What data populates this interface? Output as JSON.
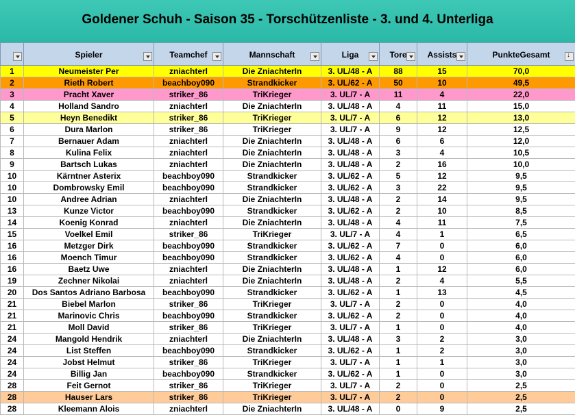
{
  "title": "Goldener Schuh - Saison 35 - Torschützenliste - 3. und 4. Unterliga",
  "columns": [
    {
      "label": "",
      "sorted": false
    },
    {
      "label": "Spieler",
      "sorted": false
    },
    {
      "label": "Teamchef",
      "sorted": false
    },
    {
      "label": "Mannschaft",
      "sorted": false
    },
    {
      "label": "Liga",
      "sorted": false
    },
    {
      "label": "Tore",
      "sorted": false
    },
    {
      "label": "Assists",
      "sorted": false
    },
    {
      "label": "PunkteGesamt",
      "sorted": true
    }
  ],
  "colors": {
    "gold": "#ffff00",
    "silver": "#ff9900",
    "bronze": "#ff99cc",
    "pale_yellow": "#ffff99",
    "peach": "#ffcc99",
    "white": "#ffffff"
  },
  "rows": [
    {
      "rank": "1",
      "player": "Neumeister Per",
      "chef": "zniachterl",
      "team": "Die ZniachterIn",
      "liga": "3. UL/48 - A",
      "tore": "88",
      "assists": "15",
      "punkte": "70,0",
      "color": "#ffff00"
    },
    {
      "rank": "2",
      "player": "Rieth Robert",
      "chef": "beachboy090",
      "team": "Strandkicker",
      "liga": "3. UL/62 - A",
      "tore": "50",
      "assists": "10",
      "punkte": "49,5",
      "color": "#ff9900"
    },
    {
      "rank": "3",
      "player": "Pracht Xaver",
      "chef": "striker_86",
      "team": "TriKrieger",
      "liga": "3. UL/7 - A",
      "tore": "11",
      "assists": "4",
      "punkte": "22,0",
      "color": "#ff99cc"
    },
    {
      "rank": "4",
      "player": "Holland Sandro",
      "chef": "zniachterl",
      "team": "Die ZniachterIn",
      "liga": "3. UL/48 - A",
      "tore": "4",
      "assists": "11",
      "punkte": "15,0",
      "color": "#ffffff"
    },
    {
      "rank": "5",
      "player": "Heyn Benedikt",
      "chef": "striker_86",
      "team": "TriKrieger",
      "liga": "3. UL/7 - A",
      "tore": "6",
      "assists": "12",
      "punkte": "13,0",
      "color": "#ffff99"
    },
    {
      "rank": "6",
      "player": "Dura Marlon",
      "chef": "striker_86",
      "team": "TriKrieger",
      "liga": "3. UL/7 - A",
      "tore": "9",
      "assists": "12",
      "punkte": "12,5",
      "color": "#ffffff"
    },
    {
      "rank": "7",
      "player": "Bernauer Adam",
      "chef": "zniachterl",
      "team": "Die ZniachterIn",
      "liga": "3. UL/48 - A",
      "tore": "6",
      "assists": "6",
      "punkte": "12,0",
      "color": "#ffffff"
    },
    {
      "rank": "8",
      "player": "Kulina Felix",
      "chef": "zniachterl",
      "team": "Die ZniachterIn",
      "liga": "3. UL/48 - A",
      "tore": "3",
      "assists": "4",
      "punkte": "10,5",
      "color": "#ffffff"
    },
    {
      "rank": "9",
      "player": "Bartsch Lukas",
      "chef": "zniachterl",
      "team": "Die ZniachterIn",
      "liga": "3. UL/48 - A",
      "tore": "2",
      "assists": "16",
      "punkte": "10,0",
      "color": "#ffffff"
    },
    {
      "rank": "10",
      "player": "Kärntner Asterix",
      "chef": "beachboy090",
      "team": "Strandkicker",
      "liga": "3. UL/62 - A",
      "tore": "5",
      "assists": "12",
      "punkte": "9,5",
      "color": "#ffffff"
    },
    {
      "rank": "10",
      "player": "Dombrowsky Emil",
      "chef": "beachboy090",
      "team": "Strandkicker",
      "liga": "3. UL/62 - A",
      "tore": "3",
      "assists": "22",
      "punkte": "9,5",
      "color": "#ffffff"
    },
    {
      "rank": "10",
      "player": "Andree Adrian",
      "chef": "zniachterl",
      "team": "Die ZniachterIn",
      "liga": "3. UL/48 - A",
      "tore": "2",
      "assists": "14",
      "punkte": "9,5",
      "color": "#ffffff"
    },
    {
      "rank": "13",
      "player": "Kunze Victor",
      "chef": "beachboy090",
      "team": "Strandkicker",
      "liga": "3. UL/62 - A",
      "tore": "2",
      "assists": "10",
      "punkte": "8,5",
      "color": "#ffffff"
    },
    {
      "rank": "14",
      "player": "Koenig Konrad",
      "chef": "zniachterl",
      "team": "Die ZniachterIn",
      "liga": "3. UL/48 - A",
      "tore": "4",
      "assists": "11",
      "punkte": "7,5",
      "color": "#ffffff"
    },
    {
      "rank": "15",
      "player": "Voelkel Emil",
      "chef": "striker_86",
      "team": "TriKrieger",
      "liga": "3. UL/7 - A",
      "tore": "4",
      "assists": "1",
      "punkte": "6,5",
      "color": "#ffffff"
    },
    {
      "rank": "16",
      "player": "Metzger Dirk",
      "chef": "beachboy090",
      "team": "Strandkicker",
      "liga": "3. UL/62 - A",
      "tore": "7",
      "assists": "0",
      "punkte": "6,0",
      "color": "#ffffff"
    },
    {
      "rank": "16",
      "player": "Moench Timur",
      "chef": "beachboy090",
      "team": "Strandkicker",
      "liga": "3. UL/62 - A",
      "tore": "4",
      "assists": "0",
      "punkte": "6,0",
      "color": "#ffffff"
    },
    {
      "rank": "16",
      "player": "Baetz Uwe",
      "chef": "zniachterl",
      "team": "Die ZniachterIn",
      "liga": "3. UL/48 - A",
      "tore": "1",
      "assists": "12",
      "punkte": "6,0",
      "color": "#ffffff"
    },
    {
      "rank": "19",
      "player": "Zechner Nikolai",
      "chef": "zniachterl",
      "team": "Die ZniachterIn",
      "liga": "3. UL/48 - A",
      "tore": "2",
      "assists": "4",
      "punkte": "5,5",
      "color": "#ffffff"
    },
    {
      "rank": "20",
      "player": "Dos Santos Adriano Barbosa",
      "chef": "beachboy090",
      "team": "Strandkicker",
      "liga": "3. UL/62 - A",
      "tore": "1",
      "assists": "13",
      "punkte": "4,5",
      "color": "#ffffff"
    },
    {
      "rank": "21",
      "player": "Biebel Marlon",
      "chef": "striker_86",
      "team": "TriKrieger",
      "liga": "3. UL/7 - A",
      "tore": "2",
      "assists": "0",
      "punkte": "4,0",
      "color": "#ffffff"
    },
    {
      "rank": "21",
      "player": "Marinovic Chris",
      "chef": "beachboy090",
      "team": "Strandkicker",
      "liga": "3. UL/62 - A",
      "tore": "2",
      "assists": "0",
      "punkte": "4,0",
      "color": "#ffffff"
    },
    {
      "rank": "21",
      "player": "Moll David",
      "chef": "striker_86",
      "team": "TriKrieger",
      "liga": "3. UL/7 - A",
      "tore": "1",
      "assists": "0",
      "punkte": "4,0",
      "color": "#ffffff"
    },
    {
      "rank": "24",
      "player": "Mangold Hendrik",
      "chef": "zniachterl",
      "team": "Die ZniachterIn",
      "liga": "3. UL/48 - A",
      "tore": "3",
      "assists": "2",
      "punkte": "3,0",
      "color": "#ffffff"
    },
    {
      "rank": "24",
      "player": "List Steffen",
      "chef": "beachboy090",
      "team": "Strandkicker",
      "liga": "3. UL/62 - A",
      "tore": "1",
      "assists": "2",
      "punkte": "3,0",
      "color": "#ffffff"
    },
    {
      "rank": "24",
      "player": "Jobst Helmut",
      "chef": "striker_86",
      "team": "TriKrieger",
      "liga": "3. UL/7 - A",
      "tore": "1",
      "assists": "1",
      "punkte": "3,0",
      "color": "#ffffff"
    },
    {
      "rank": "24",
      "player": "Billig Jan",
      "chef": "beachboy090",
      "team": "Strandkicker",
      "liga": "3. UL/62 - A",
      "tore": "1",
      "assists": "0",
      "punkte": "3,0",
      "color": "#ffffff"
    },
    {
      "rank": "28",
      "player": "Feit Gernot",
      "chef": "striker_86",
      "team": "TriKrieger",
      "liga": "3. UL/7 - A",
      "tore": "2",
      "assists": "0",
      "punkte": "2,5",
      "color": "#ffffff"
    },
    {
      "rank": "28",
      "player": "Hauser Lars",
      "chef": "striker_86",
      "team": "TriKrieger",
      "liga": "3. UL/7 - A",
      "tore": "2",
      "assists": "0",
      "punkte": "2,5",
      "color": "#ffcc99"
    },
    {
      "rank": "28",
      "player": "Kleemann Alois",
      "chef": "zniachterl",
      "team": "Die ZniachterIn",
      "liga": "3. UL/48 - A",
      "tore": "0",
      "assists": "9",
      "punkte": "2,5",
      "color": "#ffffff"
    }
  ]
}
